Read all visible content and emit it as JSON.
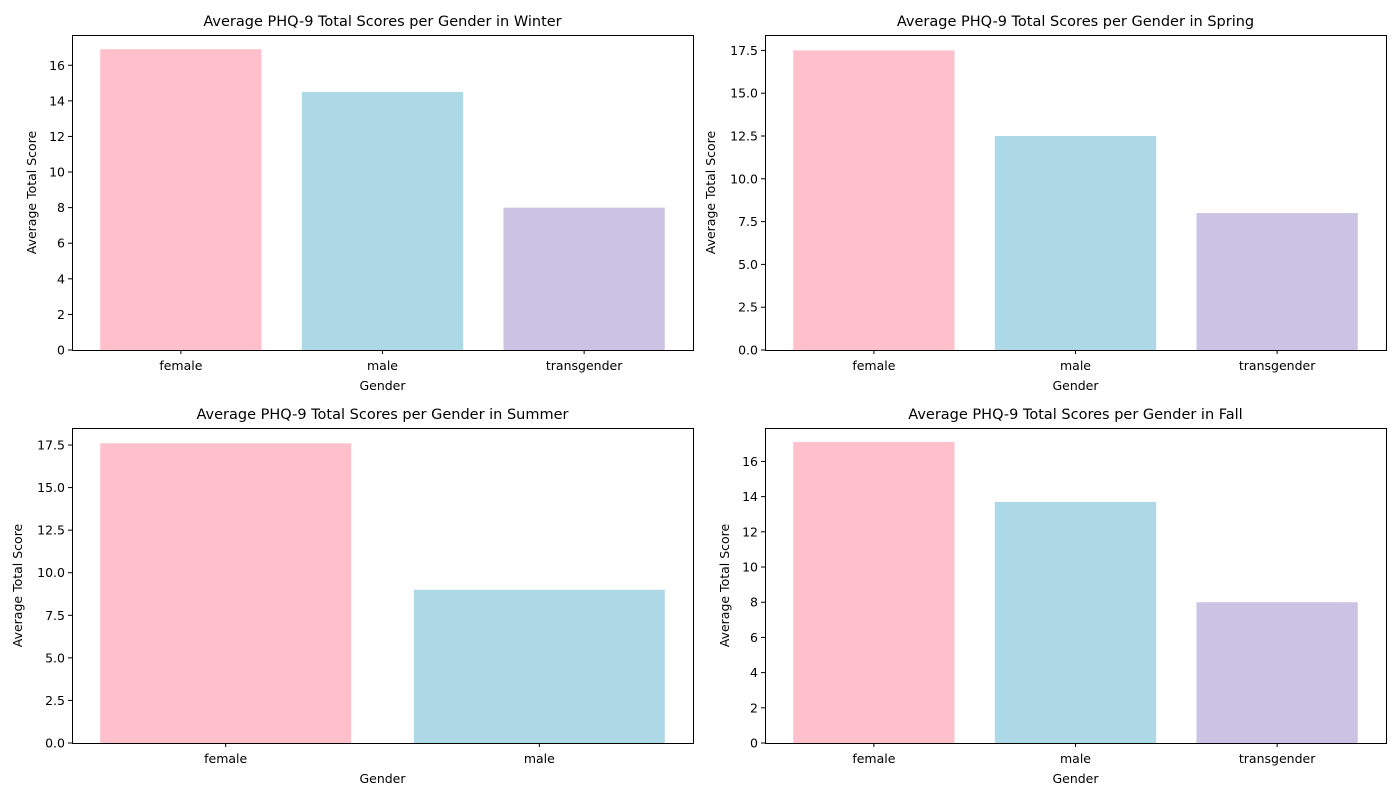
{
  "chart_data": [
    {
      "type": "bar",
      "title": "Average PHQ-9 Total Scores per Gender in Winter",
      "xlabel": "Gender",
      "ylabel": "Average Total Score",
      "categories": [
        "female",
        "male",
        "transgender"
      ],
      "values": [
        16.9,
        14.5,
        8.0
      ],
      "colors": [
        "#ffc0cb",
        "#add8e6",
        "#cbc3e3"
      ],
      "ylim": [
        0,
        17.7
      ],
      "yticks": [
        0,
        2,
        4,
        6,
        8,
        10,
        12,
        14,
        16
      ],
      "ytick_labels": [
        "0",
        "2",
        "4",
        "6",
        "8",
        "10",
        "12",
        "14",
        "16"
      ],
      "grid": false,
      "legend": false
    },
    {
      "type": "bar",
      "title": "Average PHQ-9 Total Scores per Gender in Spring",
      "xlabel": "Gender",
      "ylabel": "Average Total Score",
      "categories": [
        "female",
        "male",
        "transgender"
      ],
      "values": [
        17.5,
        12.5,
        8.0
      ],
      "colors": [
        "#ffc0cb",
        "#add8e6",
        "#cbc3e3"
      ],
      "ylim": [
        0,
        18.4
      ],
      "yticks": [
        0,
        2.5,
        5,
        7.5,
        10,
        12.5,
        15,
        17.5
      ],
      "ytick_labels": [
        "0.0",
        "2.5",
        "5.0",
        "7.5",
        "10.0",
        "12.5",
        "15.0",
        "17.5"
      ],
      "grid": false,
      "legend": false
    },
    {
      "type": "bar",
      "title": "Average PHQ-9 Total Scores per Gender in Summer",
      "xlabel": "Gender",
      "ylabel": "Average Total Score",
      "categories": [
        "female",
        "male"
      ],
      "values": [
        17.6,
        9.0
      ],
      "colors": [
        "#ffc0cb",
        "#add8e6"
      ],
      "ylim": [
        0,
        18.5
      ],
      "yticks": [
        0,
        2.5,
        5,
        7.5,
        10,
        12.5,
        15,
        17.5
      ],
      "ytick_labels": [
        "0.0",
        "2.5",
        "5.0",
        "7.5",
        "10.0",
        "12.5",
        "15.0",
        "17.5"
      ],
      "grid": false,
      "legend": false
    },
    {
      "type": "bar",
      "title": "Average PHQ-9 Total Scores per Gender in Fall",
      "xlabel": "Gender",
      "ylabel": "Average Total Score",
      "categories": [
        "female",
        "male",
        "transgender"
      ],
      "values": [
        17.1,
        13.7,
        8.0
      ],
      "colors": [
        "#ffc0cb",
        "#add8e6",
        "#cbc3e3"
      ],
      "ylim": [
        0,
        17.9
      ],
      "yticks": [
        0,
        2,
        4,
        6,
        8,
        10,
        12,
        14,
        16
      ],
      "ytick_labels": [
        "0",
        "2",
        "4",
        "6",
        "8",
        "10",
        "12",
        "14",
        "16"
      ],
      "grid": false,
      "legend": false
    }
  ]
}
